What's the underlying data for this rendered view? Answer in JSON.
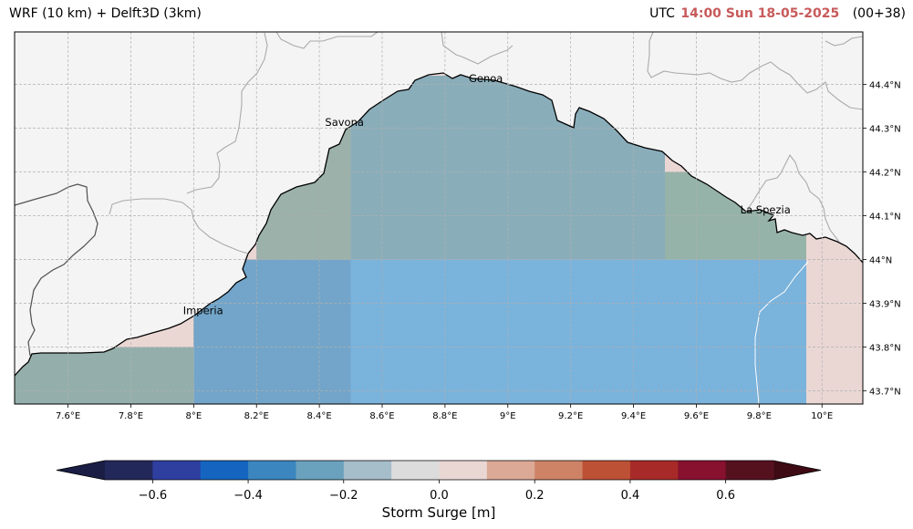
{
  "header": {
    "model_title": "WRF (10 km) + Delft3D (3km)",
    "utc_label": "UTC",
    "datetime": "14:00 Sun 18-05-2025",
    "lead_time": "(00+38)"
  },
  "map": {
    "extent": {
      "lon_min": 7.43,
      "lon_max": 10.13,
      "lat_min": 43.67,
      "lat_max": 44.52
    },
    "lon_ticks": [
      7.6,
      7.8,
      8.0,
      8.2,
      8.4,
      8.6,
      8.8,
      9.0,
      9.2,
      9.4,
      9.6,
      9.8,
      10.0
    ],
    "lon_tick_labels": [
      "7.6°E",
      "7.8°E",
      "8°E",
      "8.2°E",
      "8.4°E",
      "8.6°E",
      "8.8°E",
      "9°E",
      "9.2°E",
      "9.4°E",
      "9.6°E",
      "9.8°E",
      "10°E"
    ],
    "lat_ticks": [
      44.4,
      44.3,
      44.2,
      44.1,
      44.0,
      43.9,
      43.8,
      43.7
    ],
    "lat_tick_labels": [
      "44.4°N",
      "44.3°N",
      "44.2°N",
      "44.1°N",
      "44°N",
      "43.9°N",
      "43.8°N",
      "43.7°N"
    ],
    "gridlines": true,
    "cities": [
      {
        "name": "Genoa",
        "lon": 8.93,
        "lat": 44.405
      },
      {
        "name": "Savona",
        "lon": 8.48,
        "lat": 44.305
      },
      {
        "name": "La Spezia",
        "lon": 9.82,
        "lat": 44.105
      },
      {
        "name": "Imperia",
        "lon": 8.03,
        "lat": 43.875
      }
    ],
    "colors": {
      "land": "#f4f4f4",
      "sea_background": "#ead7d4",
      "coastline": "#000000",
      "borders": "#aaaaaa"
    }
  },
  "chart_data": {
    "type": "heatmap",
    "variable": "Storm Surge [m]",
    "colorbar": {
      "label": "Storm Surge [m]",
      "bounds": [
        -0.7,
        -0.6,
        -0.5,
        -0.4,
        -0.3,
        -0.2,
        -0.1,
        0.0,
        0.1,
        0.2,
        0.3,
        0.4,
        0.5,
        0.6,
        0.7
      ],
      "colors": [
        "#23285a",
        "#2e3fa0",
        "#1565c0",
        "#3b86bf",
        "#6aa1bd",
        "#a6bdca",
        "#dcdcdc",
        "#ead7d4",
        "#dba996",
        "#ce8367",
        "#bd5135",
        "#a82a28",
        "#87112f",
        "#56111f"
      ],
      "extend_min_color": "#1a1e45",
      "extend_max_color": "#3e0a14",
      "tick_values": [
        -0.6,
        -0.4,
        -0.2,
        0.0,
        0.2,
        0.4,
        0.6
      ],
      "tick_labels": [
        "−0.6",
        "−0.4",
        "−0.2",
        "0.0",
        "0.2",
        "0.4",
        "0.6"
      ]
    },
    "regions": [
      {
        "name": "north-east-cells",
        "lon_range": [
          8.5,
          9.5
        ],
        "lat_range": [
          44.0,
          44.42
        ],
        "color": "#8aadba"
      },
      {
        "name": "north-west-cells",
        "lon_range": [
          8.2,
          8.5
        ],
        "lat_range": [
          44.0,
          44.3
        ],
        "color": "#9bb1a9"
      },
      {
        "name": "east-cells",
        "lon_range": [
          9.5,
          9.95
        ],
        "lat_range": [
          44.0,
          44.2
        ],
        "color": "#96b3a9"
      },
      {
        "name": "south-central-cells",
        "lon_range": [
          8.5,
          9.95
        ],
        "lat_range": [
          43.67,
          44.0
        ],
        "color": "#7ab3dc"
      },
      {
        "name": "south-west-cells",
        "lon_range": [
          8.0,
          8.5
        ],
        "lat_range": [
          43.67,
          44.0
        ],
        "color": "#72a5c9"
      },
      {
        "name": "far-west-cells",
        "lon_range": [
          7.43,
          8.0
        ],
        "lat_range": [
          43.67,
          43.8
        ],
        "color": "#94afab"
      }
    ]
  }
}
